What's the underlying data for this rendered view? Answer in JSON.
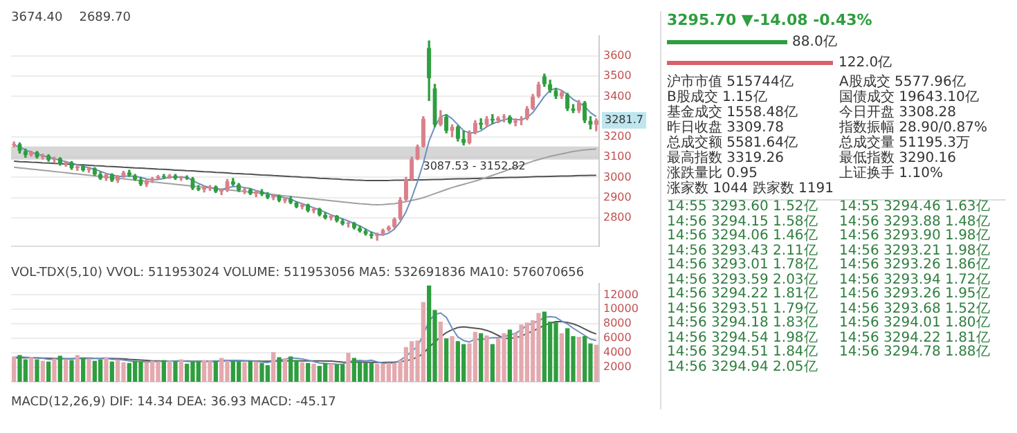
{
  "chart_data": [
    {
      "type": "candlestick",
      "categories": [
        null,
        null,
        null,
        null,
        null,
        null,
        null,
        null,
        null,
        null,
        null,
        null,
        null,
        null,
        null,
        null,
        null,
        null,
        null,
        null,
        null,
        null,
        null,
        null,
        null,
        null,
        null,
        null,
        null,
        null,
        null,
        null,
        null,
        null,
        null,
        null,
        null,
        null,
        null,
        null,
        null,
        null,
        null,
        null,
        null,
        null,
        null,
        null,
        null,
        null,
        null,
        null,
        null,
        null,
        null,
        null,
        null,
        null,
        null,
        null,
        null,
        null,
        null,
        null,
        null,
        null,
        null,
        null,
        null,
        null,
        null,
        null,
        null,
        null,
        null,
        null,
        null,
        null,
        null,
        null,
        null,
        null,
        null,
        null,
        null,
        null,
        null,
        null,
        null,
        null,
        null,
        null,
        null,
        null,
        null,
        null,
        null,
        null,
        null,
        null,
        null,
        null
      ],
      "ohlc": [
        [
          3160,
          3175,
          3150,
          3165
        ],
        [
          3165,
          3170,
          3120,
          3130
        ],
        [
          3130,
          3140,
          3100,
          3110
        ],
        [
          3110,
          3130,
          3105,
          3125
        ],
        [
          3125,
          3128,
          3095,
          3100
        ],
        [
          3100,
          3115,
          3090,
          3108
        ],
        [
          3108,
          3112,
          3080,
          3085
        ],
        [
          3085,
          3100,
          3075,
          3095
        ],
        [
          3095,
          3098,
          3060,
          3065
        ],
        [
          3065,
          3080,
          3055,
          3075
        ],
        [
          3075,
          3078,
          3040,
          3045
        ],
        [
          3045,
          3060,
          3035,
          3055
        ],
        [
          3055,
          3058,
          3030,
          3035
        ],
        [
          3035,
          3050,
          3025,
          3045
        ],
        [
          3045,
          3048,
          3010,
          3015
        ],
        [
          3015,
          3025,
          2990,
          2995
        ],
        [
          2995,
          3020,
          2985,
          3015
        ],
        [
          3015,
          3018,
          2980,
          2985
        ],
        [
          2985,
          3010,
          2975,
          3005
        ],
        [
          3005,
          3030,
          3000,
          3025
        ],
        [
          3025,
          3035,
          3005,
          3010
        ],
        [
          3010,
          3015,
          2985,
          2990
        ],
        [
          2990,
          3000,
          2960,
          2965
        ],
        [
          2965,
          2990,
          2955,
          2985
        ],
        [
          2985,
          3000,
          2975,
          2995
        ],
        [
          2995,
          3010,
          2990,
          3005
        ],
        [
          3005,
          3015,
          2995,
          3000
        ],
        [
          3000,
          3015,
          2995,
          3010
        ],
        [
          3010,
          3015,
          2990,
          2995
        ],
        [
          2995,
          3005,
          2985,
          3000
        ],
        [
          3000,
          3008,
          2990,
          2995
        ],
        [
          2995,
          3000,
          2940,
          2945
        ],
        [
          2945,
          2960,
          2935,
          2940
        ],
        [
          2940,
          2958,
          2928,
          2952
        ],
        [
          2945,
          2960,
          2935,
          2955
        ],
        [
          2955,
          2958,
          2925,
          2930
        ],
        [
          2930,
          2940,
          2915,
          2935
        ],
        [
          2935,
          2990,
          2930,
          2980
        ],
        [
          2980,
          2995,
          2960,
          2965
        ],
        [
          2965,
          2970,
          2930,
          2935
        ],
        [
          2935,
          2945,
          2920,
          2940
        ],
        [
          2940,
          2945,
          2915,
          2920
        ],
        [
          2920,
          2935,
          2905,
          2930
        ],
        [
          2930,
          2940,
          2910,
          2915
        ],
        [
          2915,
          2925,
          2895,
          2900
        ],
        [
          2900,
          2915,
          2890,
          2910
        ],
        [
          2910,
          2912,
          2880,
          2885
        ],
        [
          2885,
          2900,
          2875,
          2895
        ],
        [
          2895,
          2905,
          2870,
          2875
        ],
        [
          2875,
          2880,
          2850,
          2855
        ],
        [
          2855,
          2870,
          2845,
          2865
        ],
        [
          2865,
          2868,
          2830,
          2835
        ],
        [
          2835,
          2850,
          2825,
          2845
        ],
        [
          2845,
          2848,
          2810,
          2815
        ],
        [
          2815,
          2825,
          2795,
          2800
        ],
        [
          2800,
          2815,
          2790,
          2810
        ],
        [
          2810,
          2812,
          2780,
          2785
        ],
        [
          2785,
          2795,
          2765,
          2770
        ],
        [
          2770,
          2780,
          2755,
          2775
        ],
        [
          2775,
          2778,
          2745,
          2750
        ],
        [
          2750,
          2760,
          2730,
          2735
        ],
        [
          2735,
          2745,
          2715,
          2720
        ],
        [
          2720,
          2730,
          2700,
          2710
        ],
        [
          2710,
          2725,
          2689.7,
          2720
        ],
        [
          2720,
          2745,
          2715,
          2740
        ],
        [
          2740,
          2760,
          2735,
          2755
        ],
        [
          2755,
          2800,
          2750,
          2795
        ],
        [
          2795,
          2900,
          2790,
          2890
        ],
        [
          2890,
          3000,
          2885,
          2990
        ],
        [
          2990,
          3100,
          2985,
          3090
        ],
        [
          3090,
          3160,
          3087.53,
          3152.82
        ],
        [
          3152.82,
          3300,
          3150,
          3290
        ],
        [
          3640,
          3674.4,
          3380,
          3490
        ],
        [
          3440,
          3460,
          3250,
          3260
        ],
        [
          3260,
          3330,
          3255,
          3300
        ],
        [
          3300,
          3310,
          3220,
          3230
        ],
        [
          3230,
          3260,
          3200,
          3250
        ],
        [
          3250,
          3255,
          3180,
          3190
        ],
        [
          3190,
          3230,
          3160,
          3170
        ],
        [
          3170,
          3230,
          3165,
          3220
        ],
        [
          3220,
          3280,
          3215,
          3270
        ],
        [
          3270,
          3290,
          3240,
          3260
        ],
        [
          3260,
          3300,
          3250,
          3290
        ],
        [
          3290,
          3310,
          3265,
          3280
        ],
        [
          3280,
          3300,
          3270,
          3295
        ],
        [
          3295,
          3310,
          3275,
          3300
        ],
        [
          3300,
          3305,
          3265,
          3270
        ],
        [
          3270,
          3290,
          3255,
          3280
        ],
        [
          3280,
          3300,
          3260,
          3290
        ],
        [
          3290,
          3350,
          3285,
          3340
        ],
        [
          3340,
          3410,
          3335,
          3400
        ],
        [
          3400,
          3470,
          3395,
          3460
        ],
        [
          3500,
          3510,
          3450,
          3460
        ],
        [
          3460,
          3480,
          3420,
          3430
        ],
        [
          3430,
          3440,
          3390,
          3400
        ],
        [
          3400,
          3430,
          3390,
          3420
        ],
        [
          3410,
          3415,
          3330,
          3340
        ],
        [
          3340,
          3360,
          3320,
          3330
        ],
        [
          3330,
          3380,
          3320,
          3370
        ],
        [
          3370,
          3375,
          3270,
          3280
        ],
        [
          3280,
          3300,
          3240,
          3260
        ],
        [
          3260,
          3290,
          3230,
          3281.7
        ]
      ],
      "colors": [
        "#d9808a",
        "#2e9e3e",
        "#2e9e3e",
        "#d9808a",
        "#2e9e3e",
        "#d9808a",
        "#2e9e3e",
        "#d9808a",
        "#2e9e3e",
        "#d9808a",
        "#2e9e3e",
        "#d9808a",
        "#2e9e3e",
        "#d9808a",
        "#2e9e3e",
        "#2e9e3e",
        "#d9808a",
        "#2e9e3e",
        "#d9808a",
        "#d9808a",
        "#2e9e3e",
        "#2e9e3e",
        "#2e9e3e",
        "#d9808a",
        "#d9808a",
        "#d9808a",
        "#2e9e3e",
        "#d9808a",
        "#2e9e3e",
        "#d9808a",
        "#2e9e3e",
        "#2e9e3e",
        "#2e9e3e",
        "#d9808a",
        "#d9808a",
        "#2e9e3e",
        "#d9808a",
        "#d9808a",
        "#2e9e3e",
        "#2e9e3e",
        "#d9808a",
        "#2e9e3e",
        "#d9808a",
        "#2e9e3e",
        "#2e9e3e",
        "#d9808a",
        "#2e9e3e",
        "#d9808a",
        "#2e9e3e",
        "#2e9e3e",
        "#d9808a",
        "#2e9e3e",
        "#d9808a",
        "#2e9e3e",
        "#2e9e3e",
        "#d9808a",
        "#2e9e3e",
        "#2e9e3e",
        "#d9808a",
        "#2e9e3e",
        "#2e9e3e",
        "#2e9e3e",
        "#2e9e3e",
        "#d9808a",
        "#d9808a",
        "#d9808a",
        "#d9808a",
        "#d9808a",
        "#d9808a",
        "#d9808a",
        "#d9808a",
        "#d9808a",
        "#2e9e3e",
        "#2e9e3e",
        "#d9808a",
        "#2e9e3e",
        "#d9808a",
        "#2e9e3e",
        "#2e9e3e",
        "#d9808a",
        "#d9808a",
        "#2e9e3e",
        "#d9808a",
        "#2e9e3e",
        "#d9808a",
        "#d9808a",
        "#2e9e3e",
        "#d9808a",
        "#d9808a",
        "#d9808a",
        "#d9808a",
        "#d9808a",
        "#2e9e3e",
        "#2e9e3e",
        "#2e9e3e",
        "#d9808a",
        "#2e9e3e",
        "#2e9e3e",
        "#d9808a",
        "#2e9e3e",
        "#2e9e3e",
        "#d9808a"
      ],
      "series": [
        {
          "type": "line",
          "color": "#6a8fc0",
          "values": [
            3160,
            3150,
            3135,
            3125,
            3115,
            3108,
            3100,
            3092,
            3085,
            3078,
            3070,
            3062,
            3055,
            3048,
            3040,
            3030,
            3020,
            3012,
            3005,
            3005,
            3008,
            3005,
            3000,
            2992,
            2988,
            2990,
            2995,
            3000,
            3002,
            3002,
            3000,
            2985,
            2970,
            2958,
            2950,
            2943,
            2940,
            2948,
            2955,
            2955,
            2950,
            2945,
            2935,
            2928,
            2920,
            2912,
            2905,
            2900,
            2893,
            2880,
            2870,
            2860,
            2850,
            2840,
            2828,
            2815,
            2805,
            2795,
            2785,
            2772,
            2760,
            2745,
            2730,
            2720,
            2715,
            2725,
            2745,
            2780,
            2830,
            2900,
            2980,
            3070,
            3180,
            3250,
            3300,
            3310,
            3290,
            3260,
            3230,
            3220,
            3220,
            3230,
            3250,
            3265,
            3275,
            3285,
            3290,
            3285,
            3285,
            3295,
            3320,
            3360,
            3400,
            3430,
            3440,
            3430,
            3410,
            3385,
            3370,
            3350,
            3320,
            3300
          ]
        },
        {
          "type": "line",
          "color": "#a0a0a0",
          "values": [
            3050,
            3047,
            3044,
            3041,
            3038,
            3035,
            3032,
            3029,
            3026,
            3023,
            3020,
            3017,
            3014,
            3011,
            3008,
            3005,
            3002,
            2999,
            2996,
            2993,
            2990,
            2987,
            2984,
            2981,
            2978,
            2975,
            2972,
            2969,
            2966,
            2963,
            2960,
            2957,
            2954,
            2951,
            2948,
            2945,
            2942,
            2939,
            2936,
            2933,
            2930,
            2927,
            2924,
            2921,
            2918,
            2915,
            2912,
            2909,
            2906,
            2903,
            2900,
            2897,
            2894,
            2891,
            2888,
            2885,
            2882,
            2879,
            2876,
            2873,
            2870,
            2868,
            2866,
            2865,
            2866,
            2868,
            2870,
            2875,
            2880,
            2886,
            2892,
            2900,
            2910,
            2920,
            2930,
            2940,
            2950,
            2958,
            2966,
            2974,
            2982,
            2990,
            3000,
            3010,
            3020,
            3030,
            3040,
            3050,
            3060,
            3070,
            3080,
            3088,
            3096,
            3104,
            3110,
            3116,
            3122,
            3128,
            3132,
            3136,
            3138,
            3140
          ]
        },
        {
          "type": "line",
          "color": "#505050",
          "values": [
            3080,
            3078,
            3077,
            3075,
            3074,
            3072,
            3071,
            3069,
            3068,
            3066,
            3065,
            3063,
            3062,
            3060,
            3058,
            3057,
            3055,
            3054,
            3052,
            3050,
            3049,
            3047,
            3046,
            3044,
            3043,
            3041,
            3040,
            3038,
            3036,
            3035,
            3033,
            3032,
            3030,
            3028,
            3027,
            3025,
            3024,
            3022,
            3020,
            3019,
            3017,
            3016,
            3014,
            3012,
            3011,
            3009,
            3008,
            3006,
            3004,
            3003,
            3001,
            3000,
            2998,
            2996,
            2995,
            2993,
            2992,
            2990,
            2989,
            2987,
            2986,
            2985,
            2985,
            2985,
            2985,
            2985,
            2986,
            2986,
            2987,
            2987,
            2988,
            2988,
            2989,
            2990,
            2990,
            2991,
            2992,
            2993,
            2993,
            2994,
            2995,
            2996,
            2996,
            2997,
            2998,
            2999,
            3000,
            3000,
            3001,
            3002,
            3003,
            3004,
            3004,
            3005,
            3006,
            3007,
            3007,
            3008,
            3009,
            3009,
            3010,
            3010
          ]
        }
      ],
      "ylim": [
        2660,
        3700
      ],
      "yticks": [
        2800,
        2900,
        3000,
        3100,
        3200,
        3400,
        3500,
        3600
      ],
      "grid": "y",
      "tick_labels": "y",
      "bands": [
        {
          "axis": "y",
          "from": 3087.53,
          "to": 3152.82,
          "label": "3087.53 - 3152.82",
          "color": "#c8c8c8"
        }
      ],
      "annotations": [
        "3674.40",
        "2689.70",
        {
          "text": "3281.7",
          "y": 3281.7
        }
      ]
    },
    {
      "type": "bar",
      "title": "VOL-TDX(5,10) VVOL: 511953024 VOLUME: 511953056 MA5: 532691836 MA10: 576070656",
      "categories": [
        null,
        null,
        null,
        null,
        null,
        null,
        null,
        null,
        null,
        null,
        null,
        null,
        null,
        null,
        null,
        null,
        null,
        null,
        null,
        null,
        null,
        null,
        null,
        null,
        null,
        null,
        null,
        null,
        null,
        null,
        null,
        null,
        null,
        null,
        null,
        null,
        null,
        null,
        null,
        null,
        null,
        null,
        null,
        null,
        null,
        null,
        null,
        null,
        null,
        null,
        null,
        null,
        null,
        null,
        null,
        null,
        null,
        null,
        null,
        null,
        null,
        null,
        null,
        null,
        null,
        null,
        null,
        null,
        null,
        null,
        null,
        null,
        null,
        null,
        null,
        null,
        null,
        null,
        null,
        null,
        null,
        null,
        null,
        null,
        null,
        null,
        null,
        null,
        null,
        null,
        null,
        null,
        null,
        null,
        null,
        null,
        null,
        null,
        null,
        null,
        null,
        null
      ],
      "values": [
        3500,
        3700,
        3100,
        3400,
        3100,
        2900,
        2800,
        3200,
        3600,
        3100,
        3000,
        3700,
        3300,
        3200,
        2900,
        3100,
        3400,
        2800,
        3000,
        2700,
        2600,
        2900,
        2800,
        2700,
        2900,
        2800,
        3000,
        2900,
        2800,
        3100,
        2500,
        2800,
        2800,
        3000,
        2900,
        2900,
        3300,
        2900,
        2900,
        2800,
        2700,
        2900,
        2800,
        2600,
        2300,
        4100,
        3400,
        3200,
        3500,
        3000,
        2700,
        2600,
        2500,
        2200,
        2600,
        2500,
        2400,
        2400,
        4000,
        3300,
        2700,
        2600,
        2600,
        2500,
        2500,
        2600,
        2600,
        3000,
        4800,
        5600,
        5700,
        11000,
        13300,
        9900,
        8300,
        6000,
        6300,
        5600,
        5200,
        5300,
        6900,
        6700,
        6400,
        5200,
        6000,
        6700,
        7200,
        6700,
        7900,
        8200,
        8500,
        9500,
        9700,
        8300,
        8200,
        6700,
        7400,
        6300,
        6200,
        6300,
        5300,
        5100
      ],
      "colors": [
        "#e3a9af",
        "#2e9e3e",
        "#2e9e3e",
        "#e3a9af",
        "#2e9e3e",
        "#e3a9af",
        "#2e9e3e",
        "#e3a9af",
        "#2e9e3e",
        "#e3a9af",
        "#2e9e3e",
        "#e3a9af",
        "#2e9e3e",
        "#e3a9af",
        "#2e9e3e",
        "#2e9e3e",
        "#e3a9af",
        "#2e9e3e",
        "#e3a9af",
        "#e3a9af",
        "#2e9e3e",
        "#2e9e3e",
        "#2e9e3e",
        "#e3a9af",
        "#e3a9af",
        "#e3a9af",
        "#2e9e3e",
        "#e3a9af",
        "#2e9e3e",
        "#e3a9af",
        "#2e9e3e",
        "#2e9e3e",
        "#2e9e3e",
        "#e3a9af",
        "#e3a9af",
        "#2e9e3e",
        "#e3a9af",
        "#e3a9af",
        "#2e9e3e",
        "#2e9e3e",
        "#e3a9af",
        "#2e9e3e",
        "#e3a9af",
        "#2e9e3e",
        "#2e9e3e",
        "#e3a9af",
        "#2e9e3e",
        "#e3a9af",
        "#2e9e3e",
        "#2e9e3e",
        "#e3a9af",
        "#2e9e3e",
        "#e3a9af",
        "#2e9e3e",
        "#2e9e3e",
        "#e3a9af",
        "#2e9e3e",
        "#2e9e3e",
        "#e3a9af",
        "#2e9e3e",
        "#2e9e3e",
        "#2e9e3e",
        "#2e9e3e",
        "#e3a9af",
        "#e3a9af",
        "#e3a9af",
        "#e3a9af",
        "#e3a9af",
        "#e3a9af",
        "#e3a9af",
        "#e3a9af",
        "#e3a9af",
        "#2e9e3e",
        "#2e9e3e",
        "#e3a9af",
        "#2e9e3e",
        "#e3a9af",
        "#2e9e3e",
        "#2e9e3e",
        "#e3a9af",
        "#e3a9af",
        "#2e9e3e",
        "#e3a9af",
        "#2e9e3e",
        "#e3a9af",
        "#e3a9af",
        "#2e9e3e",
        "#e3a9af",
        "#e3a9af",
        "#e3a9af",
        "#e3a9af",
        "#e3a9af",
        "#2e9e3e",
        "#2e9e3e",
        "#2e9e3e",
        "#e3a9af",
        "#2e9e3e",
        "#2e9e3e",
        "#e3a9af",
        "#2e9e3e",
        "#2e9e3e",
        "#e3a9af"
      ],
      "series": [
        {
          "type": "line",
          "color": "#6a8fc0",
          "values": [
            3400,
            3450,
            3400,
            3350,
            3350,
            3250,
            3100,
            3100,
            3200,
            3150,
            3150,
            3300,
            3300,
            3300,
            3250,
            3250,
            3300,
            3100,
            3100,
            3000,
            2900,
            2800,
            2800,
            2750,
            2780,
            2820,
            2840,
            2840,
            2880,
            2920,
            2820,
            2820,
            2800,
            2840,
            2820,
            2820,
            2980,
            2960,
            2960,
            2960,
            2920,
            2900,
            2820,
            2740,
            2660,
            2860,
            3020,
            3120,
            3300,
            3240,
            3160,
            2980,
            2800,
            2600,
            2520,
            2480,
            2440,
            2420,
            2780,
            2920,
            2960,
            2880,
            2980,
            2740,
            2580,
            2560,
            2600,
            3000,
            3500,
            4200,
            4900,
            6500,
            8400,
            9300,
            9500,
            8900,
            7400,
            6200,
            5700,
            5500,
            5900,
            5800,
            6000,
            6100,
            6100,
            6200,
            6500,
            6700,
            7200,
            7800,
            8100,
            8400,
            8900,
            9000,
            8900,
            8400,
            8000,
            7400,
            6900,
            6400,
            5900,
            5700
          ]
        },
        {
          "type": "line",
          "color": "#555555",
          "values": [
            3300,
            3320,
            3330,
            3320,
            3300,
            3280,
            3250,
            3230,
            3220,
            3200,
            3200,
            3220,
            3230,
            3240,
            3230,
            3230,
            3240,
            3230,
            3200,
            3180,
            3100,
            3050,
            3000,
            2950,
            2900,
            2880,
            2870,
            2860,
            2860,
            2860,
            2860,
            2840,
            2840,
            2850,
            2850,
            2850,
            2880,
            2890,
            2900,
            2900,
            2880,
            2880,
            2860,
            2850,
            2840,
            2860,
            2870,
            2880,
            2900,
            2900,
            2900,
            2900,
            2900,
            2880,
            2860,
            2860,
            2800,
            2720,
            2700,
            2720,
            2750,
            2700,
            2700,
            2680,
            2680,
            2700,
            2720,
            2800,
            2900,
            3100,
            3400,
            3900,
            4800,
            5500,
            6200,
            6800,
            7200,
            7500,
            7600,
            7500,
            7400,
            7300,
            7100,
            6800,
            6400,
            6000,
            6000,
            6100,
            6300,
            6700,
            7000,
            7400,
            7800,
            8100,
            8300,
            8300,
            8200,
            8000,
            7700,
            7300,
            6900,
            6600
          ]
        }
      ],
      "ylim": [
        0,
        13600
      ],
      "yticks": [
        2000,
        4000,
        6000,
        8000,
        10000,
        12000
      ],
      "grid": "y",
      "tick_labels": "y",
      "annotations": [
        "MACD(12,26,9) DIF: 14.34 DEA: 36.93 MACD: -45.17"
      ]
    },
    {
      "type": "other",
      "title": "3295.70  ▼-14.08  -0.43%",
      "values": [
        88,
        122
      ],
      "colors": [
        "#2e9e3e",
        "#d9606a"
      ],
      "value_labels": [
        "88.0亿",
        "122.0亿"
      ],
      "annotations": [
        "沪市市值 515744亿",
        "A股成交 5577.96亿",
        "B股成交 1.15亿",
        "国债成交 19643.10亿",
        "基金成交 1558.48亿",
        "今日开盘 3308.28",
        "昨日收盘 3309.78",
        "指数振幅 28.90/0.87%",
        "总成交额 5581.64亿",
        "总成交量 51195.3万",
        "最高指数 3319.26",
        "最低指数 3290.16",
        "涨跌量比 0.95",
        "上证换手 1.10%",
        "涨家数 1044 跌家数 1191",
        "14:55 3293.60 1.52亿",
        "14:55 3294.46 1.63亿",
        "14:56 3294.15 1.58亿",
        "14:56 3293.88 1.48亿",
        "14:56 3294.06 1.46亿",
        "14:56 3293.90 1.98亿",
        "14:56 3293.43 2.11亿",
        "14:56 3293.21 1.98亿",
        "14:56 3293.01 1.78亿",
        "14:56 3293.26 1.86亿",
        "14:56 3293.59 2.03亿",
        "14:56 3293.94 1.72亿",
        "14:56 3294.22 1.81亿",
        "14:56 3293.26 1.95亿",
        "14:56 3293.51 1.79亿",
        "14:56 3293.68 1.52亿",
        "14:56 3294.18 1.83亿",
        "14:56 3294.01 1.80亿",
        "14:56 3294.54 1.98亿",
        "14:56 3294.22 1.81亿",
        "14:56 3294.51 1.84亿",
        "14:56 3294.78 1.88亿",
        "14:56 3294.94 2.05亿"
      ]
    }
  ]
}
